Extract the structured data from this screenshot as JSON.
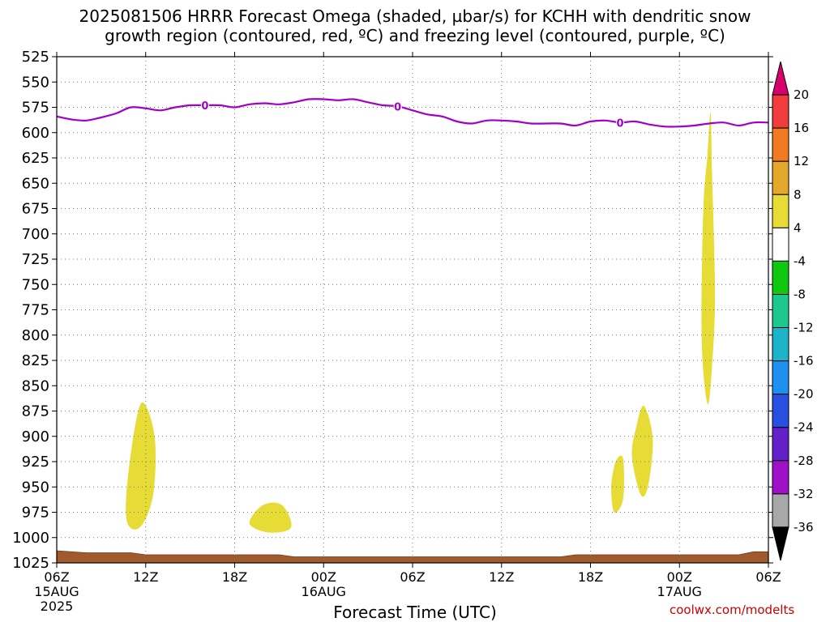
{
  "title": {
    "line1": "2025081506 HRRR Forecast Omega (shaded, µbar/s) for KCHH with dendritic snow",
    "line2": "growth region (contoured, red, ºC) and freezing level (contoured, purple, ºC)"
  },
  "credit": "coolwx.com/modelts",
  "chart_data": {
    "type": "heatmap",
    "title": "2025081506 HRRR Forecast Omega (shaded, µbar/s) for KCHH with dendritic snow growth region (contoured, red, ºC) and freezing level (contoured, purple, ºC)",
    "xlabel": "Forecast Time (UTC)",
    "ylabel": "",
    "x_ticks": [
      {
        "hour": 0,
        "label": "06Z",
        "sub1": "15AUG",
        "sub2": "2025"
      },
      {
        "hour": 6,
        "label": "12Z",
        "sub1": "",
        "sub2": ""
      },
      {
        "hour": 12,
        "label": "18Z",
        "sub1": "",
        "sub2": ""
      },
      {
        "hour": 18,
        "label": "00Z",
        "sub1": "16AUG",
        "sub2": ""
      },
      {
        "hour": 24,
        "label": "06Z",
        "sub1": "",
        "sub2": ""
      },
      {
        "hour": 30,
        "label": "12Z",
        "sub1": "",
        "sub2": ""
      },
      {
        "hour": 36,
        "label": "18Z",
        "sub1": "",
        "sub2": ""
      },
      {
        "hour": 42,
        "label": "00Z",
        "sub1": "17AUG",
        "sub2": ""
      },
      {
        "hour": 48,
        "label": "06Z",
        "sub1": "",
        "sub2": ""
      }
    ],
    "xlim_hours": [
      0,
      48
    ],
    "ylim_hpa": [
      525,
      1025
    ],
    "y_ticks": [
      "525",
      "550",
      "575",
      "600",
      "625",
      "650",
      "675",
      "700",
      "725",
      "750",
      "775",
      "800",
      "825",
      "850",
      "875",
      "900",
      "925",
      "950",
      "975",
      "1000",
      "1025"
    ],
    "grid": true,
    "colorbar": {
      "labels": [
        "20",
        "16",
        "12",
        "8",
        "4",
        "-4",
        "-8",
        "-12",
        "-16",
        "-20",
        "-24",
        "-28",
        "-32",
        "-36"
      ],
      "colors": [
        "#d8006c",
        "#f03c3c",
        "#ef7a22",
        "#e4a82a",
        "#e6dc35",
        "#ffffff",
        "#10c810",
        "#1cc88c",
        "#1cb4c8",
        "#1e90f0",
        "#2850e0",
        "#6420c8",
        "#a010c8",
        "#a8a8a8",
        "#000000"
      ]
    },
    "freezing_level": {
      "label": "0",
      "color": "#a000c8",
      "label_hours": [
        10,
        23,
        38
      ],
      "points": [
        [
          0,
          584
        ],
        [
          1,
          587
        ],
        [
          2,
          588
        ],
        [
          3,
          585
        ],
        [
          4,
          581
        ],
        [
          5,
          575
        ],
        [
          6,
          576
        ],
        [
          7,
          578
        ],
        [
          8,
          575
        ],
        [
          9,
          573
        ],
        [
          10,
          573
        ],
        [
          11,
          573
        ],
        [
          12,
          575
        ],
        [
          13,
          572
        ],
        [
          14,
          571
        ],
        [
          15,
          572
        ],
        [
          16,
          570
        ],
        [
          17,
          567
        ],
        [
          18,
          567
        ],
        [
          19,
          568
        ],
        [
          20,
          567
        ],
        [
          21,
          570
        ],
        [
          22,
          573
        ],
        [
          23,
          574
        ],
        [
          24,
          578
        ],
        [
          25,
          582
        ],
        [
          26,
          584
        ],
        [
          27,
          589
        ],
        [
          28,
          591
        ],
        [
          29,
          588
        ],
        [
          30,
          588
        ],
        [
          31,
          589
        ],
        [
          32,
          591
        ],
        [
          33,
          591
        ],
        [
          34,
          591
        ],
        [
          35,
          593
        ],
        [
          36,
          589
        ],
        [
          37,
          588
        ],
        [
          38,
          590
        ],
        [
          39,
          589
        ],
        [
          40,
          592
        ],
        [
          41,
          594
        ],
        [
          42,
          594
        ],
        [
          43,
          593
        ],
        [
          44,
          591
        ],
        [
          45,
          590
        ],
        [
          46,
          593
        ],
        [
          47,
          590
        ],
        [
          48,
          590
        ]
      ]
    },
    "omega_regions": [
      {
        "value_range": "4 to 8",
        "color": "#e6dc35",
        "points": [
          [
            5.7,
            867
          ],
          [
            6.6,
            900
          ],
          [
            6.5,
            958
          ],
          [
            5.6,
            990
          ],
          [
            4.7,
            982
          ],
          [
            4.9,
            928
          ]
        ]
      },
      {
        "value_range": "4 to 8",
        "color": "#e6dc35",
        "points": [
          [
            13.9,
            968
          ],
          [
            15.2,
            968
          ],
          [
            15.8,
            990
          ],
          [
            14.3,
            995
          ],
          [
            13.0,
            986
          ]
        ]
      },
      {
        "value_range": "4 to 8",
        "color": "#e6dc35",
        "points": [
          [
            38.2,
            922
          ],
          [
            38.2,
            962
          ],
          [
            37.6,
            975
          ],
          [
            37.4,
            950
          ],
          [
            37.7,
            925
          ]
        ]
      },
      {
        "value_range": "4 to 8",
        "color": "#e6dc35",
        "points": [
          [
            39.6,
            870
          ],
          [
            40.2,
            902
          ],
          [
            39.9,
            948
          ],
          [
            39.4,
            958
          ],
          [
            38.8,
            920
          ],
          [
            39.1,
            890
          ]
        ]
      },
      {
        "value_range": "4 to 8",
        "color": "#e6dc35",
        "points": [
          [
            44.1,
            580
          ],
          [
            44.2,
            640
          ],
          [
            44.4,
            760
          ],
          [
            44.2,
            830
          ],
          [
            43.9,
            868
          ],
          [
            43.5,
            805
          ],
          [
            43.6,
            680
          ],
          [
            43.9,
            620
          ]
        ]
      }
    ],
    "surface": {
      "color": "#a05a2c",
      "points": [
        [
          0,
          1013
        ],
        [
          2,
          1015
        ],
        [
          5,
          1015
        ],
        [
          6,
          1017
        ],
        [
          15,
          1017
        ],
        [
          16,
          1019
        ],
        [
          34,
          1019
        ],
        [
          35,
          1017
        ],
        [
          46,
          1017
        ],
        [
          47,
          1014
        ],
        [
          48,
          1014
        ]
      ]
    }
  }
}
